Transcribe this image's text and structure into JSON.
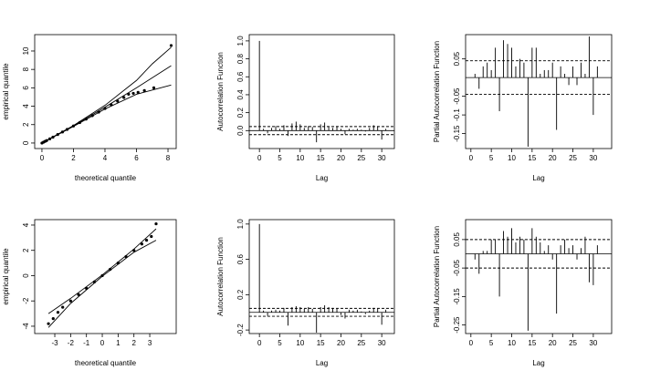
{
  "chart_data": [
    {
      "type": "scatter",
      "xlabel": "theoretical quantile",
      "ylabel": "empirical quantile",
      "xlim": [
        -0.46,
        8.52
      ],
      "ylim": [
        -0.6,
        11.78
      ],
      "xticks": [
        0,
        2,
        4,
        6,
        8
      ],
      "yticks": [
        0,
        2,
        4,
        6,
        8,
        10
      ],
      "series": [
        {
          "style": "points",
          "color": "#000000",
          "x": [
            0,
            0.1,
            0.2,
            0.3,
            0.5,
            0.7,
            1,
            1.3,
            1.6,
            2,
            2.4,
            2.8,
            3.2,
            3.6,
            4,
            4.4,
            4.8,
            5.2,
            5.5,
            5.8,
            6.1,
            6.5,
            7.1,
            8.2
          ],
          "values": [
            0,
            0.09,
            0.18,
            0.27,
            0.45,
            0.64,
            0.92,
            1.2,
            1.48,
            1.85,
            2.22,
            2.6,
            2.98,
            3.36,
            3.75,
            4.15,
            4.55,
            4.95,
            5.3,
            5.4,
            5.5,
            5.7,
            6.0,
            10.6
          ]
        },
        {
          "style": "line",
          "color": "#000000",
          "x": [
            0,
            2,
            4,
            6,
            7,
            8.2
          ],
          "values": [
            0,
            1.9,
            4.1,
            6.8,
            8.6,
            10.4
          ]
        },
        {
          "style": "line",
          "color": "#000000",
          "x": [
            0,
            2,
            4,
            6,
            8.2
          ],
          "values": [
            0,
            1.85,
            3.9,
            6,
            8.4
          ]
        },
        {
          "style": "line",
          "color": "#000000",
          "x": [
            0,
            2,
            4,
            6,
            8.2
          ],
          "values": [
            0,
            1.8,
            3.7,
            5.3,
            6.3
          ]
        }
      ]
    },
    {
      "type": "bar",
      "xlabel": "Lag",
      "ylabel": "Autocorrelation Function",
      "xlim": [
        -2.5,
        33.1
      ],
      "ylim": [
        -0.2,
        1.07
      ],
      "xticks": [
        0,
        5,
        10,
        15,
        20,
        25,
        30
      ],
      "yticks": [
        {
          "value": 0,
          "label": "0.0"
        },
        0.2,
        0.4,
        0.6,
        0.8,
        {
          "value": 1,
          "label": "1.0"
        }
      ],
      "confidence_bounds": [
        -0.045,
        0.045
      ],
      "color": "#000000",
      "x": [
        0,
        1,
        2,
        3,
        4,
        5,
        6,
        7,
        8,
        9,
        10,
        11,
        12,
        13,
        14,
        15,
        16,
        17,
        18,
        19,
        20,
        21,
        22,
        23,
        24,
        25,
        26,
        27,
        28,
        29,
        30,
        31
      ],
      "values": [
        1,
        0.02,
        -0.03,
        0.03,
        0.05,
        0.02,
        0.06,
        -0.06,
        0.08,
        0.1,
        0.07,
        0.03,
        0.05,
        0.04,
        -0.13,
        0.07,
        0.09,
        0.04,
        0.03,
        0.05,
        0.02,
        -0.04,
        0.02,
        0.01,
        0.02,
        0.01,
        -0.01,
        0.03,
        0.06,
        0.05,
        -0.1,
        0.02
      ]
    },
    {
      "type": "bar",
      "xlabel": "Lag",
      "ylabel": "Partial Autocorrelation Function",
      "xlim": [
        -1.3,
        34.5
      ],
      "ylim": [
        -0.19,
        0.115
      ],
      "xticks": [
        0,
        5,
        10,
        15,
        20,
        25,
        30
      ],
      "yticks": [
        -0.15,
        -0.1,
        -0.05,
        0.05
      ],
      "confidence_bounds": [
        -0.045,
        0.045
      ],
      "color": "#000000",
      "x": [
        1,
        2,
        3,
        4,
        5,
        6,
        7,
        8,
        9,
        10,
        11,
        12,
        13,
        14,
        15,
        16,
        17,
        18,
        19,
        20,
        21,
        22,
        23,
        24,
        25,
        26,
        27,
        28,
        29,
        30,
        31
      ],
      "values": [
        0.01,
        -0.03,
        0.03,
        0.04,
        0.02,
        0.08,
        -0.09,
        0.1,
        0.09,
        0.08,
        0.03,
        0.05,
        0.04,
        -0.185,
        0.08,
        0.08,
        0.01,
        0.02,
        0.02,
        0.04,
        -0.14,
        0.03,
        0.01,
        -0.02,
        0.03,
        -0.02,
        0.04,
        0.01,
        0.11,
        -0.1,
        0.03
      ]
    },
    {
      "type": "scatter",
      "xlabel": "theoretical quantile",
      "ylabel": "empirical quantile",
      "xlim": [
        -4.27,
        4.67
      ],
      "ylim": [
        -4.58,
        4.43
      ],
      "xticks": [
        -3,
        -2,
        -1,
        0,
        1,
        2,
        3
      ],
      "yticks": [
        -4,
        -2,
        0,
        2,
        4
      ],
      "series": [
        {
          "style": "points",
          "color": "#000000",
          "x": [
            -3.4,
            -3.1,
            -2.8,
            -2.5,
            -2,
            -1.5,
            -1,
            -0.5,
            0,
            0.5,
            1,
            1.5,
            2,
            2.5,
            2.8,
            3.1,
            3.4
          ],
          "values": [
            -3.8,
            -3.4,
            -2.9,
            -2.5,
            -2,
            -1.5,
            -1,
            -0.5,
            0,
            0.5,
            1,
            1.5,
            2,
            2.5,
            2.8,
            3.1,
            4.1
          ]
        },
        {
          "style": "line",
          "color": "#000000",
          "x": [
            -3.4,
            -2,
            0,
            2,
            3.4
          ],
          "values": [
            -3,
            -1.8,
            0.05,
            2.1,
            3.7
          ]
        },
        {
          "style": "line",
          "color": "#000000",
          "x": [
            -3.4,
            -2,
            0,
            2,
            3.4
          ],
          "values": [
            -4.1,
            -2.2,
            -0.05,
            1.85,
            2.8
          ]
        }
      ]
    },
    {
      "type": "bar",
      "xlabel": "Lag",
      "ylabel": "Autocorrelation Function",
      "xlim": [
        -2.5,
        33.1
      ],
      "ylim": [
        -0.24,
        1.05
      ],
      "xticks": [
        0,
        5,
        10,
        15,
        20,
        25,
        30
      ],
      "yticks": [
        -0.2,
        0.2,
        0.6,
        {
          "value": 1,
          "label": "1.0"
        }
      ],
      "confidence_bounds": [
        -0.045,
        0.045
      ],
      "color": "#000000",
      "x": [
        0,
        1,
        2,
        3,
        4,
        5,
        6,
        7,
        8,
        9,
        10,
        11,
        12,
        13,
        14,
        15,
        16,
        17,
        18,
        19,
        20,
        21,
        22,
        23,
        24,
        25,
        26,
        27,
        28,
        29,
        30,
        31
      ],
      "values": [
        1,
        0.02,
        -0.04,
        0.02,
        0.03,
        0.02,
        0.05,
        -0.15,
        0.06,
        0.07,
        0.06,
        0.04,
        0.06,
        0.04,
        -0.23,
        0.06,
        0.08,
        0.06,
        0.05,
        0.04,
        -0.03,
        -0.07,
        0.03,
        0.02,
        0.03,
        0.01,
        -0.02,
        0.02,
        0.05,
        0.04,
        -0.14,
        0.03
      ]
    },
    {
      "type": "bar",
      "xlabel": "Lag",
      "ylabel": "Partial Autocorrelation Function",
      "xlim": [
        -1.3,
        34.5
      ],
      "ylim": [
        -0.28,
        0.12
      ],
      "xticks": [
        0,
        5,
        10,
        15,
        20,
        25,
        30
      ],
      "yticks": [
        -0.25,
        -0.15,
        -0.05,
        0.05
      ],
      "confidence_bounds": [
        -0.05,
        0.05
      ],
      "color": "#000000",
      "x": [
        1,
        2,
        3,
        4,
        5,
        6,
        7,
        8,
        9,
        10,
        11,
        12,
        13,
        14,
        15,
        16,
        17,
        18,
        19,
        20,
        21,
        22,
        23,
        24,
        25,
        26,
        27,
        28,
        29,
        30,
        31
      ],
      "values": [
        -0.02,
        -0.07,
        0.01,
        0.01,
        0.05,
        0.05,
        -0.15,
        0.08,
        0.06,
        0.09,
        0.04,
        0.06,
        0.05,
        -0.27,
        0.09,
        0.06,
        0.04,
        0.01,
        0.03,
        -0.02,
        -0.21,
        0.03,
        0.05,
        0.02,
        0.03,
        -0.02,
        0.02,
        0.06,
        -0.1,
        -0.11,
        0.03
      ]
    }
  ]
}
